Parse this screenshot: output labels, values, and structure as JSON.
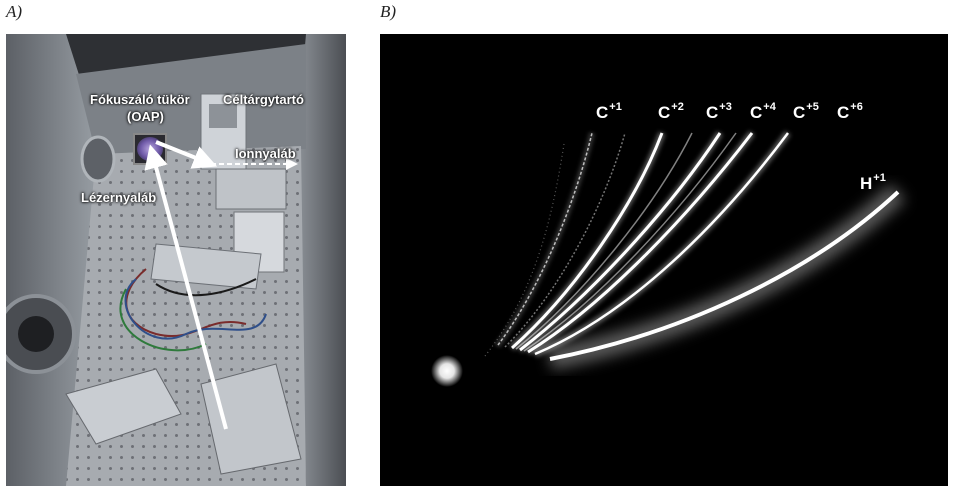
{
  "panels": {
    "a": {
      "label": "A)"
    },
    "b": {
      "label": "B)"
    }
  },
  "photo_annotations": {
    "mirror_line1": "Fókuszáló tükör",
    "mirror_line2": "(OAP)",
    "target_holder": "Céltárgytartó",
    "ion_beam": "Ionnyaláb",
    "laser_beam": "Lézernyaláb"
  },
  "ion_traces": [
    {
      "element": "C",
      "charge": "+1"
    },
    {
      "element": "C",
      "charge": "+2"
    },
    {
      "element": "C",
      "charge": "+3"
    },
    {
      "element": "C",
      "charge": "+4"
    },
    {
      "element": "C",
      "charge": "+5"
    },
    {
      "element": "C",
      "charge": "+6"
    },
    {
      "element": "H",
      "charge": "+1"
    }
  ]
}
